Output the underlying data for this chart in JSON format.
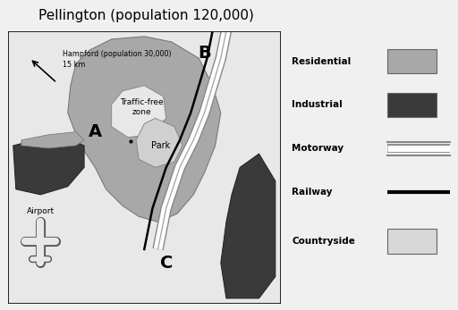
{
  "title": "Pellington (population 120,000)",
  "title_fontsize": 11,
  "fig_bg": "#f0f0f0",
  "map_bg": "#d4d4d4",
  "outside_bg": "#e8e8e8",
  "residential_color": "#a8a8a8",
  "industrial_color": "#3a3a3a",
  "traffic_free_color": "#e8e8e8",
  "park_color": "#d0d0d0",
  "motorway_color": "#ffffff",
  "countryside_color": "#d8d8d8",
  "legend_bg": "#f0f0f0",
  "hampford_text1": "Hampford (population 30,000)",
  "hampford_text2": "15 km",
  "airport_text": "Airport",
  "site_A": "A",
  "site_B": "B",
  "site_C": "C",
  "traffic_free_label": "Traffic-free\nzone",
  "park_label": "Park",
  "legend_items": [
    {
      "label": "Residential",
      "color": "#a8a8a8",
      "type": "box"
    },
    {
      "label": "Industrial",
      "color": "#3a3a3a",
      "type": "box"
    },
    {
      "label": "Motorway",
      "color": "#ffffff",
      "type": "motorway"
    },
    {
      "label": "Railway",
      "color": "#000000",
      "type": "railway"
    },
    {
      "label": "Countryside",
      "color": "#d8d8d8",
      "type": "box"
    }
  ]
}
